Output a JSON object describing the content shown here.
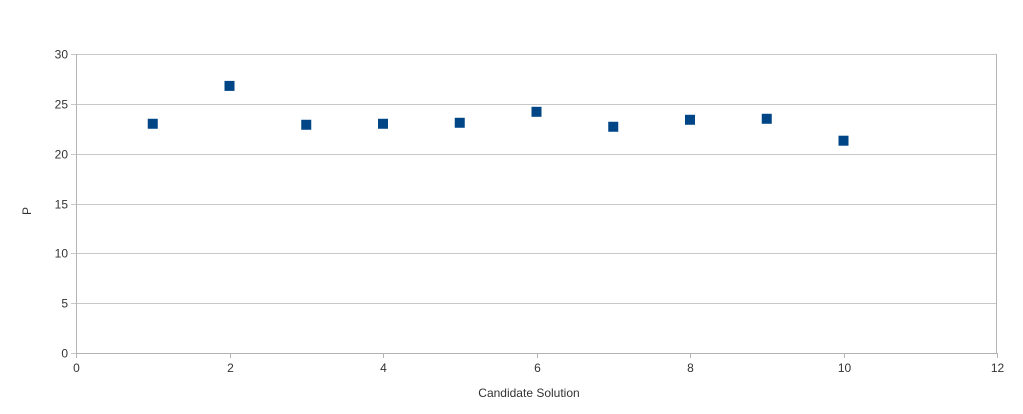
{
  "chart_data": {
    "type": "scatter",
    "title": "",
    "xlabel": "Candidate Solution",
    "ylabel": "P",
    "xlim": [
      0,
      12
    ],
    "ylim": [
      0,
      30
    ],
    "xticks": [
      0,
      2,
      4,
      6,
      8,
      10,
      12
    ],
    "yticks": [
      0,
      5,
      10,
      15,
      20,
      25,
      30
    ],
    "grid": "horizontal",
    "legend": "none",
    "marker": "square",
    "color": "#004586",
    "series": [
      {
        "x": [
          1,
          2,
          3,
          4,
          5,
          6,
          7,
          8,
          9,
          10
        ],
        "y": [
          23.0,
          26.8,
          22.9,
          23.0,
          23.1,
          24.2,
          22.7,
          23.4,
          23.5,
          21.3
        ]
      }
    ]
  }
}
